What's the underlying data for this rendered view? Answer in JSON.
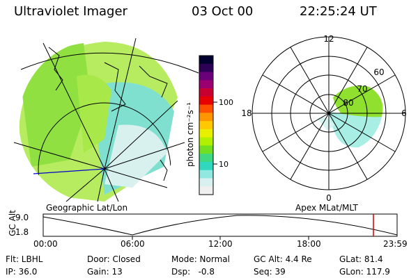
{
  "header": {
    "title": "Ultraviolet Imager",
    "date": "03 Oct 00",
    "time": "22:25:24 UT"
  },
  "captions": {
    "left": "Geographic Lat/Lon",
    "right": "Apex MLat/MLT"
  },
  "colorbar": {
    "label": "photon cm⁻²s⁻¹",
    "ticks": [
      "100",
      "10"
    ],
    "colors": [
      "#000030",
      "#2b0055",
      "#6a007a",
      "#9a0072",
      "#c80032",
      "#e80000",
      "#ff5000",
      "#ff9600",
      "#ffc800",
      "#e8f000",
      "#b0f000",
      "#70e020",
      "#40d880",
      "#30d8c0",
      "#90e8e0",
      "#d8f0f0",
      "#f0f0f0"
    ]
  },
  "polar": {
    "labels_mlt": [
      "12",
      "18",
      "6",
      "0"
    ],
    "labels_mlat": [
      "60",
      "70",
      "80"
    ]
  },
  "timeline": {
    "ylabel": "GC Alt",
    "yticks": [
      "9.0",
      "1.8"
    ],
    "xticks": [
      "00:00",
      "06:00",
      "12:00",
      "18:00",
      "23:59"
    ]
  },
  "status": {
    "flt": "Flt: LBHL",
    "ip": "IP: 36.0",
    "door": "Door: Closed",
    "gain": "Gain: 13",
    "mode": "Mode: Normal",
    "dsp": "Dsp:   -0.8",
    "gcalt": "GC Alt: 4.4 Re",
    "seq": "Seq: 39",
    "glat": "GLat: 81.4",
    "glon": "GLon: 117.9"
  }
}
